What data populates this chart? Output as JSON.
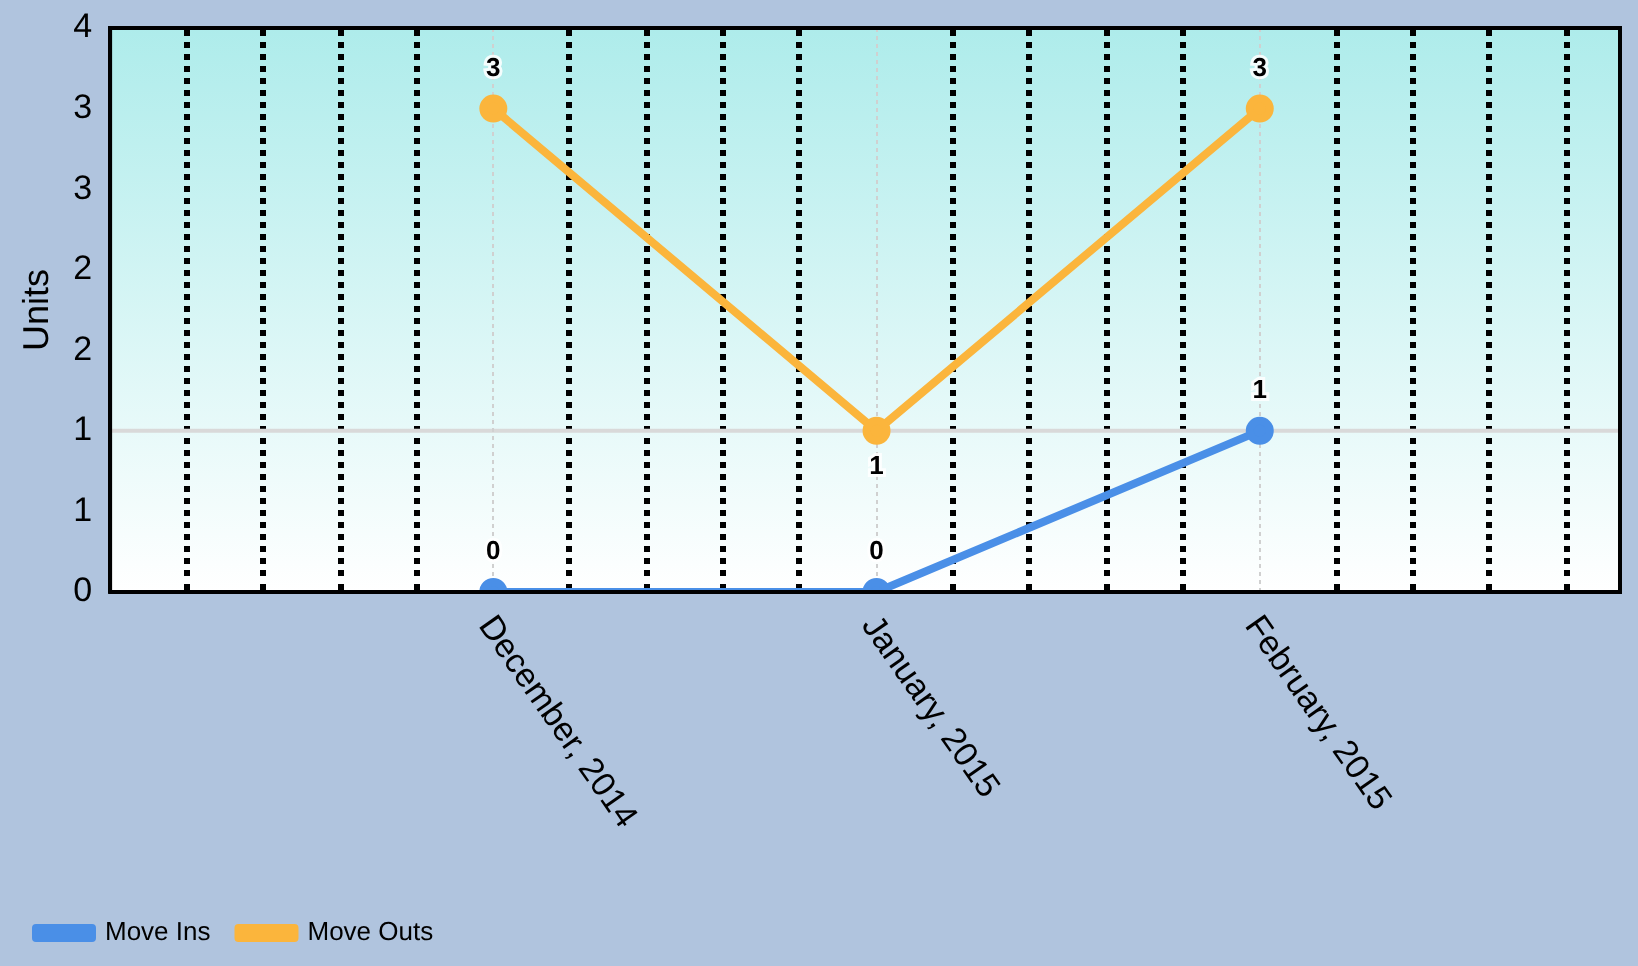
{
  "chart_data": {
    "type": "line",
    "ylabel": "Units",
    "categories": [
      "December, 2014",
      "January, 2015",
      "February, 2015"
    ],
    "series": [
      {
        "name": "Move Ins",
        "color": "#4a8fe7",
        "values": [
          0,
          0,
          1
        ]
      },
      {
        "name": "Move Outs",
        "color": "#fbb53c",
        "values": [
          3,
          1,
          3
        ]
      }
    ],
    "ylim": [
      0,
      3.5
    ],
    "yticks": [
      0,
      {
        "value": 0.5,
        "label": "1"
      },
      1,
      {
        "value": 1.5,
        "label": "2"
      },
      2,
      {
        "value": 2.5,
        "label": "3"
      },
      3,
      {
        "value": 3.5,
        "label": "4"
      }
    ],
    "ref_lines": [
      {
        "axis": "y",
        "value": 1,
        "color": "#d9d9d9"
      }
    ],
    "grid": "x",
    "legend": "bottom left",
    "marker": "circle",
    "line_style": "solid",
    "data_labels": true
  }
}
